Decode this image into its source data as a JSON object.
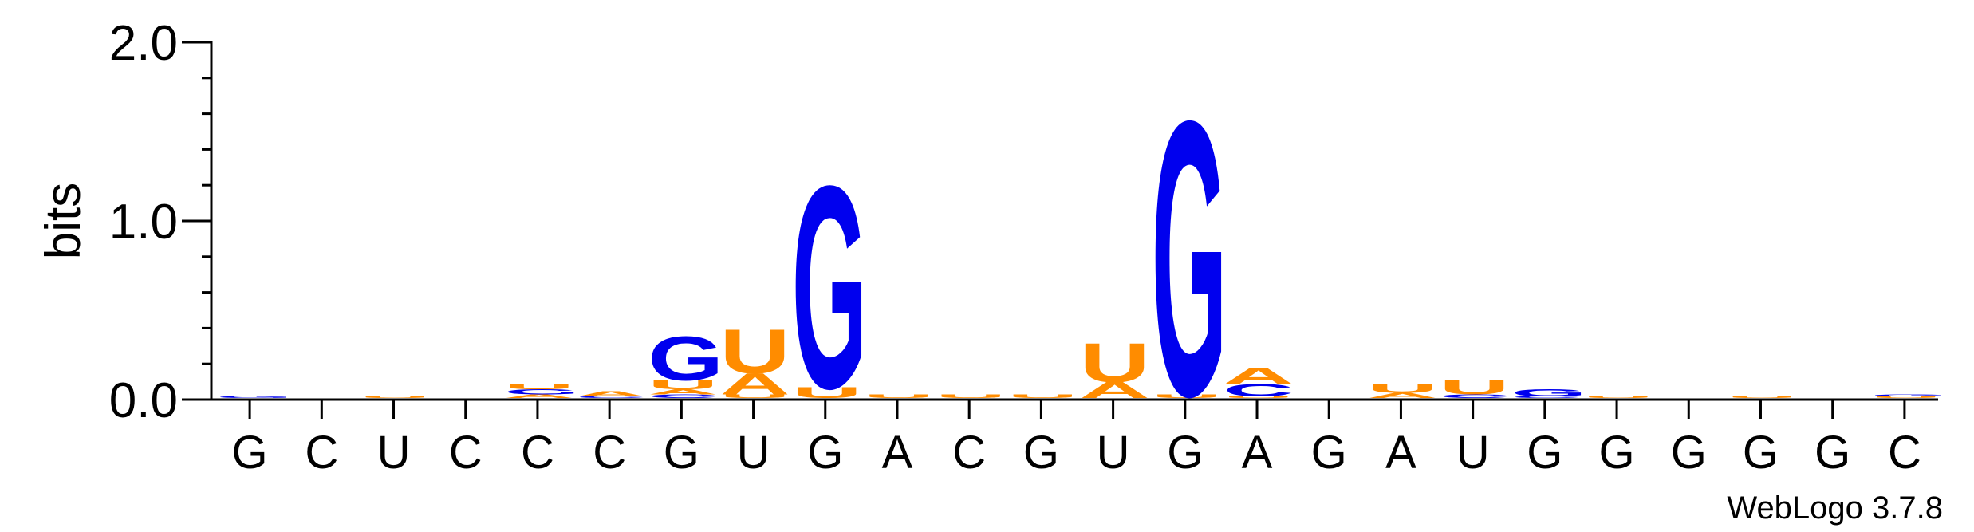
{
  "chart_data": {
    "type": "sequence-logo",
    "ylabel": "bits",
    "ylim": [
      0,
      2.0
    ],
    "yticks": [
      {
        "value": 0.0,
        "label": "0.0"
      },
      {
        "value": 1.0,
        "label": "1.0"
      },
      {
        "value": 2.0,
        "label": "2.0"
      }
    ],
    "colors": {
      "G": "#0000ee",
      "C": "#0000ee",
      "A": "#ff8c00",
      "U": "#ff8c00"
    },
    "positions": [
      {
        "label": "G",
        "stack": [
          {
            "letter": "G",
            "bits": 0.01
          }
        ]
      },
      {
        "label": "C",
        "stack": []
      },
      {
        "label": "U",
        "stack": [
          {
            "letter": "U",
            "bits": 0.01
          }
        ]
      },
      {
        "label": "C",
        "stack": []
      },
      {
        "label": "C",
        "stack": [
          {
            "letter": "A",
            "bits": 0.02
          },
          {
            "letter": "G",
            "bits": 0.03
          },
          {
            "letter": "U",
            "bits": 0.03
          }
        ]
      },
      {
        "label": "C",
        "stack": [
          {
            "letter": "C",
            "bits": 0.01
          },
          {
            "letter": "A",
            "bits": 0.03
          }
        ]
      },
      {
        "label": "G",
        "stack": [
          {
            "letter": "C",
            "bits": 0.02
          },
          {
            "letter": "A",
            "bits": 0.03
          },
          {
            "letter": "U",
            "bits": 0.05
          },
          {
            "letter": "G",
            "bits": 0.25
          }
        ]
      },
      {
        "label": "U",
        "stack": [
          {
            "letter": "U",
            "bits": 0.02
          },
          {
            "letter": "A",
            "bits": 0.12
          },
          {
            "letter": "U",
            "bits": 0.25
          }
        ]
      },
      {
        "label": "G",
        "stack": [
          {
            "letter": "U",
            "bits": 0.06
          },
          {
            "letter": "G",
            "bits": 1.15
          }
        ]
      },
      {
        "label": "A",
        "stack": [
          {
            "letter": "U",
            "bits": 0.02
          }
        ]
      },
      {
        "label": "C",
        "stack": [
          {
            "letter": "U",
            "bits": 0.02
          }
        ]
      },
      {
        "label": "G",
        "stack": [
          {
            "letter": "U",
            "bits": 0.02
          }
        ]
      },
      {
        "label": "U",
        "stack": [
          {
            "letter": "A",
            "bits": 0.09
          },
          {
            "letter": "U",
            "bits": 0.22
          }
        ]
      },
      {
        "label": "G",
        "stack": [
          {
            "letter": "U",
            "bits": 0.02
          },
          {
            "letter": "G",
            "bits": 1.56
          }
        ]
      },
      {
        "label": "A",
        "stack": [
          {
            "letter": "U",
            "bits": 0.01
          },
          {
            "letter": "C",
            "bits": 0.07
          },
          {
            "letter": "A",
            "bits": 0.09
          }
        ]
      },
      {
        "label": "G",
        "stack": []
      },
      {
        "label": "A",
        "stack": [
          {
            "letter": "A",
            "bits": 0.03
          },
          {
            "letter": "U",
            "bits": 0.05
          }
        ]
      },
      {
        "label": "U",
        "stack": [
          {
            "letter": "C",
            "bits": 0.02
          },
          {
            "letter": "U",
            "bits": 0.08
          }
        ]
      },
      {
        "label": "G",
        "stack": [
          {
            "letter": "C",
            "bits": 0.01
          },
          {
            "letter": "G",
            "bits": 0.04
          }
        ]
      },
      {
        "label": "G",
        "stack": [
          {
            "letter": "U",
            "bits": 0.01
          }
        ]
      },
      {
        "label": "G",
        "stack": []
      },
      {
        "label": "G",
        "stack": [
          {
            "letter": "U",
            "bits": 0.01
          }
        ]
      },
      {
        "label": "G",
        "stack": []
      },
      {
        "label": "C",
        "stack": [
          {
            "letter": "U",
            "bits": 0.01
          },
          {
            "letter": "G",
            "bits": 0.01
          }
        ]
      }
    ]
  },
  "footer": {
    "credit": "WebLogo 3.7.8"
  }
}
